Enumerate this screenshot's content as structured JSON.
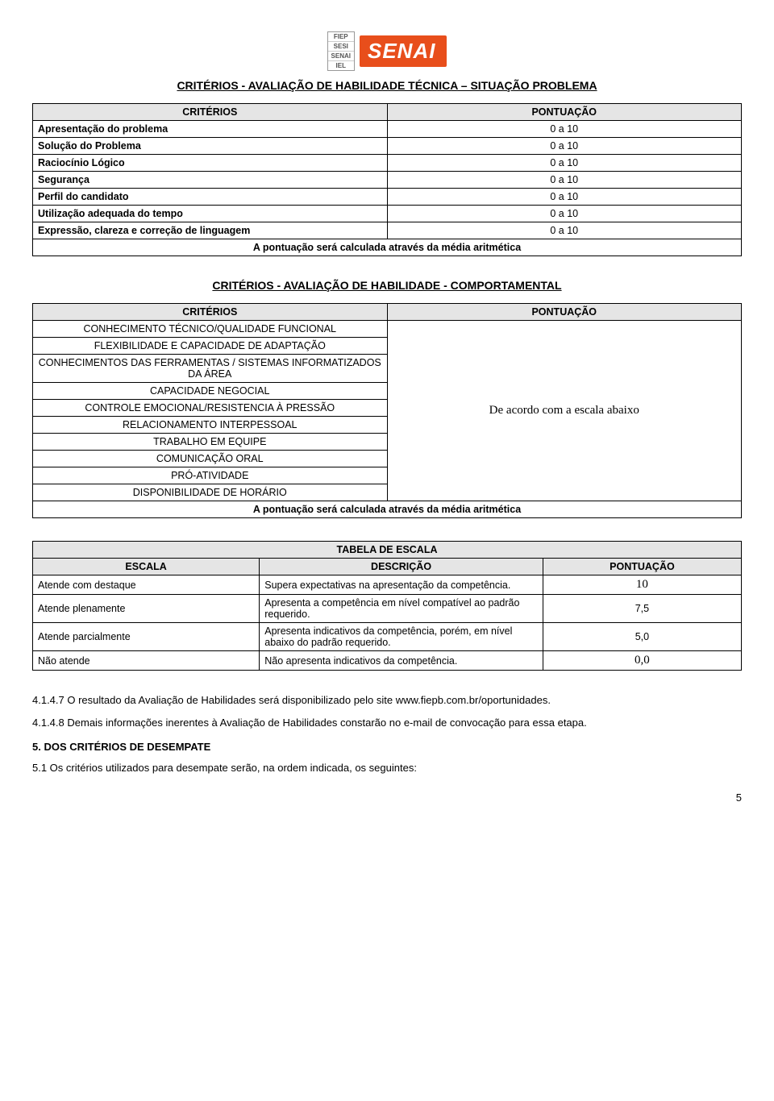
{
  "logo": {
    "badges": [
      "FIEP",
      "SESI",
      "SENAI",
      "IEL"
    ],
    "main": "SENAI"
  },
  "section1": {
    "title": "CRITÉRIOS - AVALIAÇÃO DE HABILIDADE TÉCNICA – SITUAÇÃO PROBLEMA",
    "header_criterios": "CRITÉRIOS",
    "header_pontuacao": "PONTUAÇÃO",
    "rows": [
      {
        "label": "Apresentação do problema",
        "score": "0 a 10"
      },
      {
        "label": "Solução do Problema",
        "score": "0 a 10"
      },
      {
        "label": "Raciocínio Lógico",
        "score": "0 a 10"
      },
      {
        "label": "Segurança",
        "score": "0 a 10"
      },
      {
        "label": "Perfil do candidato",
        "score": "0 a 10"
      },
      {
        "label": "Utilização adequada do tempo",
        "score": "0 a 10"
      },
      {
        "label": "Expressão, clareza e correção de linguagem",
        "score": "0 a 10"
      }
    ],
    "footer": "A pontuação será calculada através da média aritmética"
  },
  "section2": {
    "title": "CRITÉRIOS - AVALIAÇÃO DE HABILIDADE - COMPORTAMENTAL",
    "header_criterios": "CRITÉRIOS",
    "header_pontuacao": "PONTUAÇÃO",
    "rows": [
      "CONHECIMENTO TÉCNICO/QUALIDADE FUNCIONAL",
      "FLEXIBILIDADE E CAPACIDADE DE ADAPTAÇÃO",
      "CONHECIMENTOS DAS FERRAMENTAS / SISTEMAS INFORMATIZADOS DA ÁREA",
      "CAPACIDADE NEGOCIAL",
      "CONTROLE EMOCIONAL/RESISTENCIA À PRESSÃO",
      "RELACIONAMENTO INTERPESSOAL",
      "TRABALHO EM EQUIPE",
      "COMUNICAÇÃO ORAL",
      "PRÓ-ATIVIDADE",
      "DISPONIBILIDADE DE HORÁRIO"
    ],
    "right_text": "De acordo com a escala abaixo",
    "footer": "A pontuação será calculada através da média aritmética"
  },
  "section3": {
    "title": "TABELA DE ESCALA",
    "headers": {
      "escala": "ESCALA",
      "descricao": "DESCRIÇÃO",
      "pontuacao": "PONTUAÇÃO"
    },
    "rows": [
      {
        "escala": "Atende com destaque",
        "descricao": "Supera expectativas na apresentação da competência.",
        "pontuacao": "10",
        "serif": true
      },
      {
        "escala": "Atende plenamente",
        "descricao": "Apresenta a competência em nível compatível ao padrão requerido.",
        "pontuacao": "7,5",
        "serif": false
      },
      {
        "escala": "Atende parcialmente",
        "descricao": "Apresenta indicativos da competência, porém, em nível abaixo do padrão requerido.",
        "pontuacao": "5,0",
        "serif": false
      },
      {
        "escala": "Não atende",
        "descricao": "Não apresenta indicativos da competência.",
        "pontuacao": "0,0",
        "serif": true
      }
    ]
  },
  "paragraphs": {
    "p1": "4.1.4.7 O resultado da Avaliação de Habilidades será disponibilizado pelo site www.fiepb.com.br/oportunidades.",
    "p2": "4.1.4.8 Demais informações inerentes à Avaliação de Habilidades constarão no e-mail de convocação para essa etapa.",
    "h5": "5. DOS CRITÉRIOS DE DESEMPATE",
    "p3": "5.1 Os critérios utilizados para desempate serão, na ordem indicada, os seguintes:"
  },
  "page_number": "5",
  "colors": {
    "header_bg": "#e5e5e5",
    "border": "#000000",
    "accent": "#e84e1b"
  }
}
